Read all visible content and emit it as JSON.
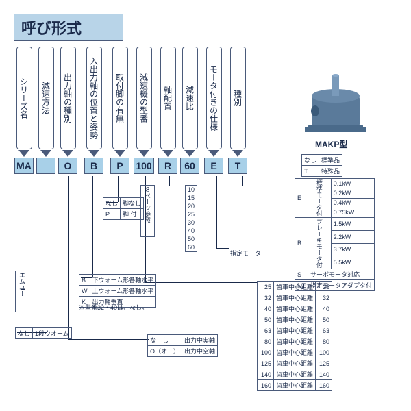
{
  "title": "呼び形式",
  "columns": [
    {
      "head": "シリーズ名",
      "code": "MA"
    },
    {
      "head": "減速方法",
      "code": ""
    },
    {
      "head": "出力軸の種別",
      "code": "O"
    },
    {
      "head": "入出力軸の位置と姿勢",
      "code": "B"
    },
    {
      "head": "取付脚の有無",
      "code": "P"
    },
    {
      "head": "減速機の型番",
      "code": "100"
    },
    {
      "head": "軸配置",
      "code": "R"
    },
    {
      "head": "減速比",
      "code": "60"
    },
    {
      "head": "モータ付きの仕様",
      "code": "E"
    },
    {
      "head": "種別",
      "code": "T"
    }
  ],
  "gear_label": "MAKP型",
  "leg_table": {
    "r1": [
      "なし",
      "脚なし"
    ],
    "r2": [
      "P",
      "脚 付"
    ]
  },
  "mu": "エムユー",
  "one_stage": "1段ウオーム",
  "none_lbl": "なし",
  "page_ref": "８ページ参照",
  "ratio_list": [
    "10",
    "15",
    "20",
    "25",
    "30",
    "40",
    "50",
    "60"
  ],
  "pos_table": {
    "r1": [
      "B",
      "下ウォーム形各軸水平"
    ],
    "r2": [
      "W",
      "上ウォーム形各軸水平"
    ],
    "r3": [
      "K",
      "出力軸垂直"
    ]
  },
  "pos_note": "※型番32・40は、なし。",
  "shaft_table": {
    "r1": [
      "な　し",
      "出力中実軸"
    ],
    "r2": [
      "O（オー）",
      "出力中空軸"
    ]
  },
  "type_table": {
    "r1": [
      "なし",
      "標準品"
    ],
    "r2": [
      "T",
      "特殊品"
    ]
  },
  "motor_table": {
    "e": [
      "E",
      "標準モータ付",
      "0.1kW",
      "0.2kW",
      "0.4kW",
      "0.75kW"
    ],
    "b": [
      "B",
      "ブレーキモータ付",
      "1.5kW",
      "2.2kW",
      "3.7kW",
      "5.5kW"
    ],
    "s": [
      "S",
      "サーボモータ対応"
    ],
    "nt": [
      "NT",
      "指定モータアダプタ付"
    ]
  },
  "motor_label": "指定モータ",
  "dist_label": "歯車中心距離",
  "dist_vals": [
    "25",
    "32",
    "40",
    "50",
    "63",
    "80",
    "100",
    "125",
    "140",
    "160"
  ],
  "colors": {
    "blue": "#a8d0e8",
    "dark": "#4a5a7a",
    "gear": "#4a6a8a"
  }
}
